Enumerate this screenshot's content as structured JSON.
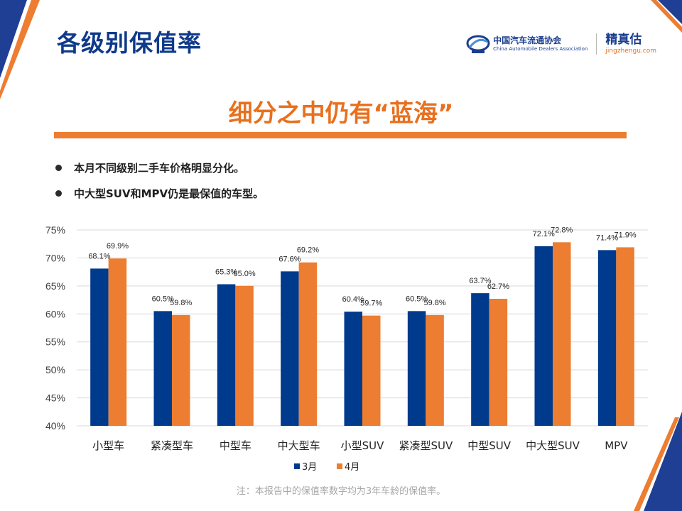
{
  "header": {
    "title": "各级别保值率",
    "logo_cada_cn": "中国汽车流通协会",
    "logo_cada_en": "China Automobile Dealers Association",
    "logo_jzg_cn": "精真估",
    "logo_jzg_en": "jingzhengu.com"
  },
  "headline": "细分之中仍有“蓝海”",
  "bullets": [
    "本月不同级别二手车价格明显分化。",
    "中大型SUV和MPV仍是最保值的车型。"
  ],
  "note": "注：本报告中的保值率数字均为3年车龄的保值率。",
  "colors": {
    "title": "#0f3a8a",
    "accent": "#ed7d31",
    "series_march": "#003a8c",
    "series_april": "#ed7d31"
  },
  "chart_data": {
    "type": "bar",
    "categories": [
      "小型车",
      "紧凑型车",
      "中型车",
      "中大型车",
      "小型SUV",
      "紧凑型SUV",
      "中型SUV",
      "中大型SUV",
      "MPV"
    ],
    "series": [
      {
        "name": "3月",
        "values": [
          68.1,
          60.5,
          65.3,
          67.6,
          60.4,
          60.5,
          63.7,
          72.1,
          71.4
        ],
        "labels": [
          "68.1%",
          "60.5%",
          "65.3%",
          "67.6%",
          "60.4%",
          "60.5%",
          "63.7%",
          "72.1%",
          "71.4%"
        ]
      },
      {
        "name": "4月",
        "values": [
          69.9,
          59.8,
          65.0,
          69.2,
          59.7,
          59.8,
          62.7,
          72.8,
          71.9
        ],
        "labels": [
          "69.9%",
          "59.8%",
          "65.0%",
          "69.2%",
          "59.7%",
          "59.8%",
          "62.7%",
          "72.8%",
          "71.9%"
        ]
      }
    ],
    "yticks": [
      "40%",
      "45%",
      "50%",
      "55%",
      "60%",
      "65%",
      "70%",
      "75%"
    ],
    "ylim": [
      40,
      75
    ],
    "grid": true,
    "legend": "bottom-center"
  }
}
